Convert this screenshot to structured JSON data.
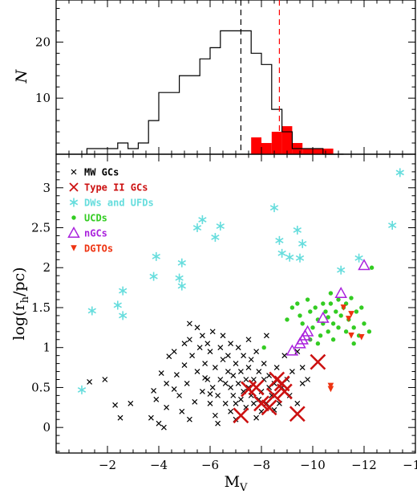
{
  "chart_data": [
    {
      "type": "histogram",
      "panel": "top",
      "ylabel": "N",
      "xlim": [
        0,
        -14
      ],
      "ylim": [
        0,
        27.5
      ],
      "y_ticks": [
        10,
        20
      ],
      "colors": {
        "all": "#000000",
        "type_ii": "#ff0000"
      },
      "bin_edges": [
        -1.2,
        -1.6,
        -2.0,
        -2.4,
        -2.8,
        -3.2,
        -3.6,
        -4.0,
        -4.4,
        -4.8,
        -5.2,
        -5.6,
        -6.0,
        -6.4,
        -6.8,
        -7.2,
        -7.6,
        -8.0,
        -8.4,
        -8.8,
        -9.2,
        -9.6,
        -10.0,
        -10.4,
        -10.8,
        -11.2
      ],
      "all_counts": [
        1,
        1,
        1,
        2,
        1,
        2,
        6,
        11,
        11,
        14,
        14,
        17,
        19,
        22,
        22,
        22,
        18,
        16,
        8,
        4,
        1,
        1,
        1,
        0,
        0
      ],
      "type_ii_counts": [
        0,
        0,
        0,
        0,
        0,
        0,
        0,
        0,
        0,
        0,
        0,
        0,
        0,
        0,
        0,
        0,
        3,
        2,
        4,
        5,
        2,
        1,
        1,
        1,
        0
      ],
      "vlines": [
        {
          "x": -7.2,
          "color": "#000000",
          "style": "dashed"
        },
        {
          "x": -8.7,
          "color": "#ff0000",
          "style": "dashed"
        }
      ]
    },
    {
      "type": "scatter",
      "panel": "bottom",
      "xlabel": "M",
      "xlabel_sub": "V",
      "ylabel": "log(r",
      "ylabel_sub": "h",
      "ylabel_tail": "/pc)",
      "xlim": [
        0,
        -14
      ],
      "ylim": [
        -0.32,
        3.42
      ],
      "x_ticks": [
        -2,
        -4,
        -6,
        -8,
        -10,
        -12,
        -14
      ],
      "x_tick_labels": [
        "−2",
        "−4",
        "−6",
        "−8",
        "−10",
        "−12",
        "−14"
      ],
      "y_ticks": [
        0,
        0.5,
        1,
        1.5,
        2,
        2.5,
        3
      ],
      "y_tick_labels": [
        "0",
        "0.5",
        "1",
        "1.5",
        "2",
        "2.5",
        "3"
      ],
      "legend_position": "top-left",
      "series": [
        {
          "name": "MW GCs",
          "marker": "x",
          "color": "#000000",
          "points": [
            [
              -1.3,
              0.57
            ],
            [
              -1.9,
              0.6
            ],
            [
              -2.3,
              0.28
            ],
            [
              -2.5,
              0.12
            ],
            [
              -2.9,
              0.3
            ],
            [
              -3.7,
              0.12
            ],
            [
              -3.8,
              0.46
            ],
            [
              -4.0,
              0.05
            ],
            [
              -4.1,
              0.68
            ],
            [
              -4.2,
              0.0
            ],
            [
              -4.3,
              0.25
            ],
            [
              -4.3,
              0.55
            ],
            [
              -4.4,
              0.89
            ],
            [
              -4.6,
              0.95
            ],
            [
              -4.7,
              0.66
            ],
            [
              -4.8,
              0.4
            ],
            [
              -4.9,
              0.2
            ],
            [
              -5.0,
              0.78
            ],
            [
              -5.0,
              1.05
            ],
            [
              -5.1,
              0.55
            ],
            [
              -5.2,
              1.1
            ],
            [
              -5.2,
              1.3
            ],
            [
              -5.3,
              0.9
            ],
            [
              -5.4,
              0.32
            ],
            [
              -5.5,
              0.7
            ],
            [
              -5.5,
              1.25
            ],
            [
              -5.6,
              1.0
            ],
            [
              -5.7,
              0.45
            ],
            [
              -5.7,
              1.15
            ],
            [
              -5.8,
              0.8
            ],
            [
              -5.9,
              0.6
            ],
            [
              -5.9,
              1.05
            ],
            [
              -6.0,
              0.3
            ],
            [
              -6.0,
              0.95
            ],
            [
              -6.1,
              0.5
            ],
            [
              -6.1,
              1.2
            ],
            [
              -6.2,
              0.75
            ],
            [
              -6.2,
              0.15
            ],
            [
              -6.3,
              0.4
            ],
            [
              -6.4,
              1.0
            ],
            [
              -6.4,
              0.6
            ],
            [
              -6.5,
              0.85
            ],
            [
              -6.5,
              1.15
            ],
            [
              -6.6,
              0.3
            ],
            [
              -6.6,
              0.55
            ],
            [
              -6.7,
              0.7
            ],
            [
              -6.7,
              0.9
            ],
            [
              -6.8,
              0.5
            ],
            [
              -6.8,
              0.2
            ],
            [
              -6.9,
              0.4
            ],
            [
              -6.9,
              0.65
            ],
            [
              -7.0,
              0.8
            ],
            [
              -7.0,
              0.1
            ],
            [
              -7.1,
              0.55
            ],
            [
              -7.1,
              1.0
            ],
            [
              -7.2,
              0.35
            ],
            [
              -7.2,
              0.7
            ],
            [
              -7.3,
              0.45
            ],
            [
              -7.3,
              0.9
            ],
            [
              -7.4,
              0.6
            ],
            [
              -7.4,
              0.25
            ],
            [
              -7.5,
              0.5
            ],
            [
              -7.5,
              0.75
            ],
            [
              -7.6,
              0.4
            ],
            [
              -7.6,
              0.85
            ],
            [
              -7.7,
              0.3
            ],
            [
              -7.7,
              0.6
            ],
            [
              -7.8,
              0.5
            ],
            [
              -7.8,
              0.95
            ],
            [
              -7.9,
              0.35
            ],
            [
              -7.9,
              0.7
            ],
            [
              -8.0,
              0.45
            ],
            [
              -8.0,
              0.2
            ],
            [
              -8.1,
              0.6
            ],
            [
              -8.1,
              0.8
            ],
            [
              -8.2,
              0.3
            ],
            [
              -8.3,
              0.5
            ],
            [
              -8.3,
              0.65
            ],
            [
              -8.4,
              0.4
            ],
            [
              -8.5,
              0.55
            ],
            [
              -8.6,
              0.75
            ],
            [
              -8.7,
              0.3
            ],
            [
              -8.8,
              0.5
            ],
            [
              -8.9,
              0.9
            ],
            [
              -9.0,
              0.6
            ],
            [
              -9.1,
              0.4
            ],
            [
              -9.2,
              0.7
            ],
            [
              -9.4,
              0.3
            ],
            [
              -9.6,
              0.55
            ],
            [
              -9.8,
              0.6
            ],
            [
              -4.6,
              0.48
            ],
            [
              -3.9,
              0.35
            ],
            [
              -6.3,
              0.05
            ],
            [
              -5.2,
              0.1
            ],
            [
              -6.8,
              1.05
            ],
            [
              -7.5,
              1.1
            ],
            [
              -8.2,
              1.15
            ],
            [
              -9.4,
              0.95
            ],
            [
              -9.6,
              0.75
            ],
            [
              -5.8,
              0.62
            ],
            [
              -6.0,
              0.42
            ],
            [
              -7.0,
              0.3
            ],
            [
              -7.8,
              0.12
            ],
            [
              -8.5,
              0.22
            ]
          ]
        },
        {
          "name": "Type II GCs",
          "marker": "X",
          "color": "#cc1111",
          "points": [
            [
              -7.2,
              0.15
            ],
            [
              -7.5,
              0.48
            ],
            [
              -7.8,
              0.5
            ],
            [
              -8.0,
              0.3
            ],
            [
              -8.3,
              0.25
            ],
            [
              -8.5,
              0.4
            ],
            [
              -8.6,
              0.6
            ],
            [
              -8.8,
              0.55
            ],
            [
              -8.9,
              0.45
            ],
            [
              -9.4,
              0.17
            ],
            [
              -10.2,
              0.82
            ]
          ]
        },
        {
          "name": "DWs and UFDs",
          "marker": "asterisk",
          "color": "#66dddd",
          "points": [
            [
              -1.0,
              0.47
            ],
            [
              -1.4,
              1.46
            ],
            [
              -2.4,
              1.53
            ],
            [
              -2.6,
              1.71
            ],
            [
              -2.6,
              1.4
            ],
            [
              -3.8,
              1.89
            ],
            [
              -3.9,
              2.14
            ],
            [
              -4.8,
              1.87
            ],
            [
              -4.9,
              1.77
            ],
            [
              -4.9,
              2.06
            ],
            [
              -5.5,
              2.5
            ],
            [
              -5.7,
              2.6
            ],
            [
              -6.2,
              2.38
            ],
            [
              -6.4,
              2.52
            ],
            [
              -8.5,
              2.75
            ],
            [
              -8.7,
              2.34
            ],
            [
              -8.8,
              2.18
            ],
            [
              -9.1,
              2.13
            ],
            [
              -9.4,
              2.47
            ],
            [
              -9.5,
              2.12
            ],
            [
              -9.6,
              2.3
            ],
            [
              -11.1,
              1.97
            ],
            [
              -11.8,
              2.12
            ],
            [
              -13.1,
              2.53
            ],
            [
              -13.4,
              3.19
            ]
          ]
        },
        {
          "name": "UCDs",
          "marker": "dot",
          "color": "#33cc22",
          "points": [
            [
              -8.1,
              1.0
            ],
            [
              -9.0,
              1.35
            ],
            [
              -9.2,
              1.5
            ],
            [
              -9.4,
              1.55
            ],
            [
              -9.5,
              1.4
            ],
            [
              -9.6,
              1.3
            ],
            [
              -9.8,
              1.6
            ],
            [
              -9.9,
              1.45
            ],
            [
              -10.0,
              1.25
            ],
            [
              -10.1,
              1.5
            ],
            [
              -10.2,
              1.35
            ],
            [
              -10.3,
              1.15
            ],
            [
              -10.4,
              1.55
            ],
            [
              -10.4,
              1.3
            ],
            [
              -10.5,
              1.45
            ],
            [
              -10.6,
              1.2
            ],
            [
              -10.6,
              1.38
            ],
            [
              -10.7,
              1.55
            ],
            [
              -10.8,
              1.3
            ],
            [
              -10.8,
              1.1
            ],
            [
              -10.9,
              1.45
            ],
            [
              -11.0,
              1.6
            ],
            [
              -11.0,
              1.25
            ],
            [
              -11.1,
              1.4
            ],
            [
              -11.2,
              1.5
            ],
            [
              -11.3,
              1.2
            ],
            [
              -11.3,
              1.55
            ],
            [
              -11.4,
              1.35
            ],
            [
              -11.5,
              1.62
            ],
            [
              -11.6,
              1.25
            ],
            [
              -11.7,
              1.45
            ],
            [
              -11.8,
              1.15
            ],
            [
              -11.9,
              1.5
            ],
            [
              -12.0,
              1.3
            ],
            [
              -12.2,
              1.2
            ],
            [
              -12.3,
              2.0
            ],
            [
              -11.6,
              1.05
            ],
            [
              -10.2,
              1.05
            ],
            [
              -9.9,
              1.1
            ],
            [
              -10.7,
              1.68
            ]
          ]
        },
        {
          "name": "nGCs",
          "marker": "triangle",
          "color": "#aa22dd",
          "points": [
            [
              -9.2,
              0.96
            ],
            [
              -9.5,
              1.05
            ],
            [
              -9.6,
              1.1
            ],
            [
              -9.7,
              1.15
            ],
            [
              -9.8,
              1.2
            ],
            [
              -10.4,
              1.37
            ],
            [
              -11.1,
              1.68
            ],
            [
              -12.0,
              2.03
            ]
          ]
        },
        {
          "name": "DGTOs",
          "marker": "tri-down",
          "color": "#ee3311",
          "points": [
            [
              -10.7,
              0.48
            ],
            [
              -11.2,
              1.5
            ],
            [
              -11.4,
              1.36
            ],
            [
              -11.5,
              1.42
            ],
            [
              -11.5,
              1.15
            ],
            [
              -11.9,
              1.13
            ],
            [
              -10.7,
              0.52
            ]
          ]
        }
      ]
    }
  ]
}
